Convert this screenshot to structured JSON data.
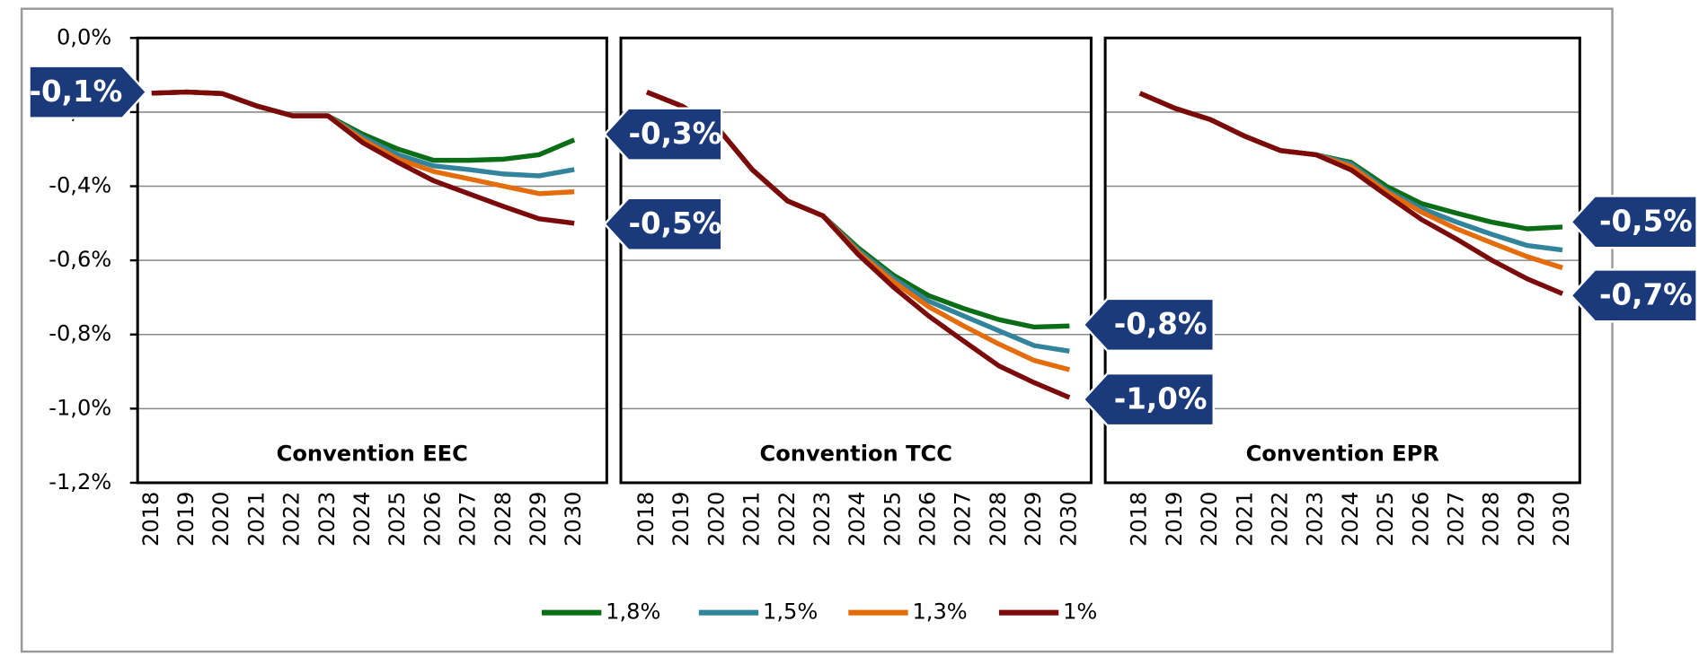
{
  "chart_data": {
    "type": "line",
    "categories": [
      "2018",
      "2019",
      "2020",
      "2021",
      "2022",
      "2023",
      "2024",
      "2025",
      "2026",
      "2027",
      "2028",
      "2029",
      "2030"
    ],
    "ylim": [
      -1.2,
      0
    ],
    "yticks": [
      {
        "value": 0,
        "label": "0,0%"
      },
      {
        "value": -0.2,
        "label": "-0,2%"
      },
      {
        "value": -0.4,
        "label": "-0,4%"
      },
      {
        "value": -0.6,
        "label": "-0,6%"
      },
      {
        "value": -0.8,
        "label": "-0,8%"
      },
      {
        "value": -1.0,
        "label": "-1,0%"
      },
      {
        "value": -1.2,
        "label": "-1,2%"
      }
    ],
    "grid": true,
    "legend": "bottom",
    "series": [
      {
        "name": "1,8%",
        "color": "#0b6e16"
      },
      {
        "name": "1,5%",
        "color": "#31849b"
      },
      {
        "name": "1,3%",
        "color": "#e46c0a"
      },
      {
        "name": "1%",
        "color": "#7b0a0a"
      }
    ],
    "panels": [
      {
        "title": "Convention EEC",
        "annotations": [
          "-0,1%",
          "-0,3%",
          "-0,5%"
        ],
        "values": [
          [
            -0.149,
            -0.146,
            -0.15,
            -0.184,
            -0.21,
            -0.21,
            -0.26,
            -0.3,
            -0.33,
            -0.33,
            -0.327,
            -0.315,
            -0.275
          ],
          [
            -0.149,
            -0.146,
            -0.15,
            -0.184,
            -0.21,
            -0.21,
            -0.268,
            -0.315,
            -0.345,
            -0.355,
            -0.367,
            -0.372,
            -0.355
          ],
          [
            -0.149,
            -0.146,
            -0.15,
            -0.184,
            -0.21,
            -0.21,
            -0.275,
            -0.327,
            -0.36,
            -0.38,
            -0.4,
            -0.42,
            -0.415
          ],
          [
            -0.149,
            -0.146,
            -0.15,
            -0.184,
            -0.21,
            -0.21,
            -0.283,
            -0.336,
            -0.385,
            -0.42,
            -0.455,
            -0.488,
            -0.5
          ]
        ]
      },
      {
        "title": "Convention TCC",
        "annotations": [
          "-0,8%",
          "-1,0%"
        ],
        "values": [
          [
            -0.146,
            -0.184,
            -0.242,
            -0.356,
            -0.44,
            -0.48,
            -0.566,
            -0.64,
            -0.695,
            -0.73,
            -0.76,
            -0.78,
            -0.777
          ],
          [
            -0.146,
            -0.184,
            -0.242,
            -0.356,
            -0.44,
            -0.48,
            -0.572,
            -0.648,
            -0.71,
            -0.75,
            -0.79,
            -0.83,
            -0.845
          ],
          [
            -0.146,
            -0.184,
            -0.242,
            -0.356,
            -0.44,
            -0.48,
            -0.578,
            -0.657,
            -0.725,
            -0.777,
            -0.826,
            -0.87,
            -0.895
          ],
          [
            -0.146,
            -0.184,
            -0.242,
            -0.356,
            -0.44,
            -0.48,
            -0.584,
            -0.672,
            -0.75,
            -0.818,
            -0.885,
            -0.93,
            -0.97
          ]
        ]
      },
      {
        "title": "Convention EPR",
        "annotations": [
          "-0,5%",
          "-0,7%"
        ],
        "values": [
          [
            -0.149,
            -0.19,
            -0.22,
            -0.266,
            -0.304,
            -0.315,
            -0.336,
            -0.4,
            -0.447,
            -0.473,
            -0.497,
            -0.515,
            -0.51
          ],
          [
            -0.149,
            -0.19,
            -0.22,
            -0.266,
            -0.304,
            -0.315,
            -0.34,
            -0.41,
            -0.46,
            -0.497,
            -0.53,
            -0.56,
            -0.572
          ],
          [
            -0.149,
            -0.19,
            -0.22,
            -0.266,
            -0.304,
            -0.315,
            -0.347,
            -0.415,
            -0.47,
            -0.515,
            -0.553,
            -0.59,
            -0.62
          ],
          [
            -0.149,
            -0.19,
            -0.22,
            -0.266,
            -0.304,
            -0.315,
            -0.356,
            -0.424,
            -0.49,
            -0.543,
            -0.6,
            -0.65,
            -0.69
          ]
        ]
      }
    ]
  }
}
